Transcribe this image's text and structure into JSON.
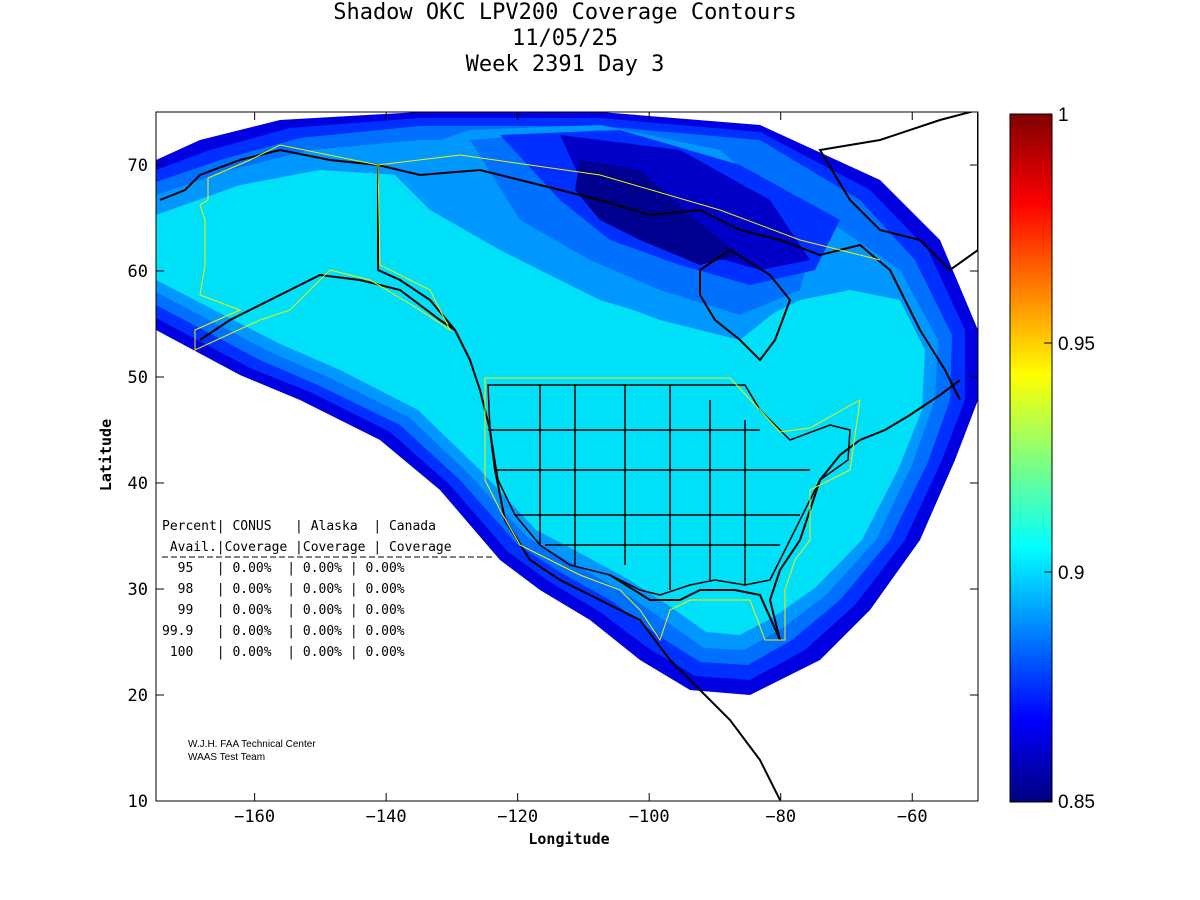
{
  "title": {
    "line1": "Shadow OKC LPV200 Coverage Contours",
    "line2": "11/05/25",
    "line3": "Week 2391 Day 3"
  },
  "axes": {
    "xlabel": "Longitude",
    "ylabel": "Latitude",
    "xlim": [
      -175,
      -50
    ],
    "ylim": [
      10,
      75
    ],
    "xticks": [
      -160,
      -140,
      -120,
      -100,
      -80,
      -60
    ],
    "yticks": [
      10,
      20,
      30,
      40,
      50,
      60,
      70
    ]
  },
  "colorbar": {
    "min": 0.85,
    "max": 1,
    "ticks": [
      "1",
      "0.95",
      "0.9",
      "0.85"
    ],
    "tick_values": [
      1,
      0.95,
      0.9,
      0.85
    ]
  },
  "table": {
    "header1": "Percent| CONUS   | Alaska  | Canada",
    "header2": " Avail.|Coverage |Coverage | Coverage",
    "rows": [
      "  95   | 0.00%  | 0.00% | 0.00%",
      "  98   | 0.00%  | 0.00% | 0.00%",
      "  99   | 0.00%  | 0.00% | 0.00%",
      "99.9   | 0.00%  | 0.00% | 0.00%",
      " 100   | 0.00%  | 0.00% | 0.00%"
    ]
  },
  "credit": {
    "line1": "W.J.H. FAA Technical Center",
    "line2": "WAAS Test Team"
  },
  "colors": {
    "outer": "#0000e0",
    "band1": "#0030ff",
    "band2": "#0070ff",
    "band3": "#0098ff",
    "main": "#00e0f8",
    "dark": "#000090",
    "boundary": "#f0f000"
  }
}
